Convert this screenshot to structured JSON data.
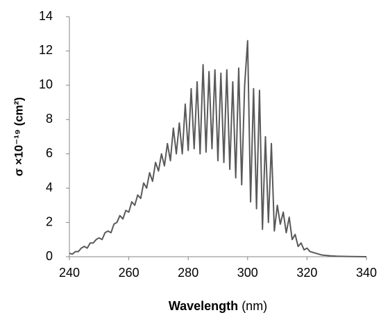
{
  "chart_data": {
    "type": "line",
    "ylabel": "σ ×10⁻¹⁹ (cm²)",
    "xlabel": "Wavelength",
    "xlabel_unit": "(nm)",
    "xlim": [
      240,
      340
    ],
    "xticks": [
      240,
      260,
      280,
      300,
      320,
      340
    ],
    "ylim": [
      0,
      14
    ],
    "yticks": [
      0,
      2,
      4,
      6,
      8,
      10,
      12,
      14
    ],
    "grid": false,
    "series": [
      {
        "color": "#595959",
        "x": [
          240,
          241,
          242,
          243,
          244,
          245,
          246,
          247,
          248,
          249,
          250,
          251,
          252,
          253,
          254,
          255,
          256,
          257,
          258,
          259,
          260,
          261,
          262,
          263,
          264,
          265,
          266,
          267,
          268,
          269,
          270,
          271,
          272,
          273,
          274,
          275,
          276,
          277,
          278,
          279,
          280,
          281,
          282,
          283,
          284,
          285,
          286,
          287,
          288,
          289,
          290,
          291,
          292,
          293,
          294,
          295,
          296,
          297,
          298,
          299,
          300,
          301,
          302,
          303,
          304,
          305,
          306,
          307,
          308,
          309,
          310,
          311,
          312,
          313,
          314,
          315,
          316,
          317,
          318,
          319,
          320,
          321,
          322,
          323,
          324,
          325,
          326,
          328,
          330,
          332,
          335,
          340
        ],
        "values": [
          0.2,
          0.15,
          0.3,
          0.3,
          0.5,
          0.6,
          0.5,
          0.8,
          0.8,
          1.0,
          1.1,
          1.0,
          1.4,
          1.5,
          1.4,
          1.9,
          2.0,
          2.4,
          2.2,
          2.7,
          2.6,
          3.2,
          3.0,
          3.6,
          3.4,
          4.3,
          4.0,
          4.9,
          4.4,
          5.5,
          5.0,
          6.0,
          5.3,
          6.6,
          5.6,
          7.5,
          6.0,
          7.8,
          6.0,
          8.9,
          6.2,
          9.8,
          6.3,
          10.2,
          6.0,
          11.2,
          6.1,
          10.8,
          6.3,
          10.9,
          5.6,
          10.7,
          5.5,
          10.9,
          5.1,
          10.2,
          4.6,
          11.0,
          4.2,
          10.0,
          12.6,
          3.2,
          9.8,
          2.8,
          9.7,
          1.6,
          7.0,
          2.0,
          6.6,
          1.5,
          3.0,
          1.9,
          2.6,
          1.4,
          2.3,
          1.0,
          1.3,
          0.6,
          0.8,
          0.4,
          0.5,
          0.3,
          0.25,
          0.2,
          0.15,
          0.1,
          0.08,
          0.05,
          0.03,
          0.02,
          0.01,
          0
        ]
      }
    ]
  }
}
